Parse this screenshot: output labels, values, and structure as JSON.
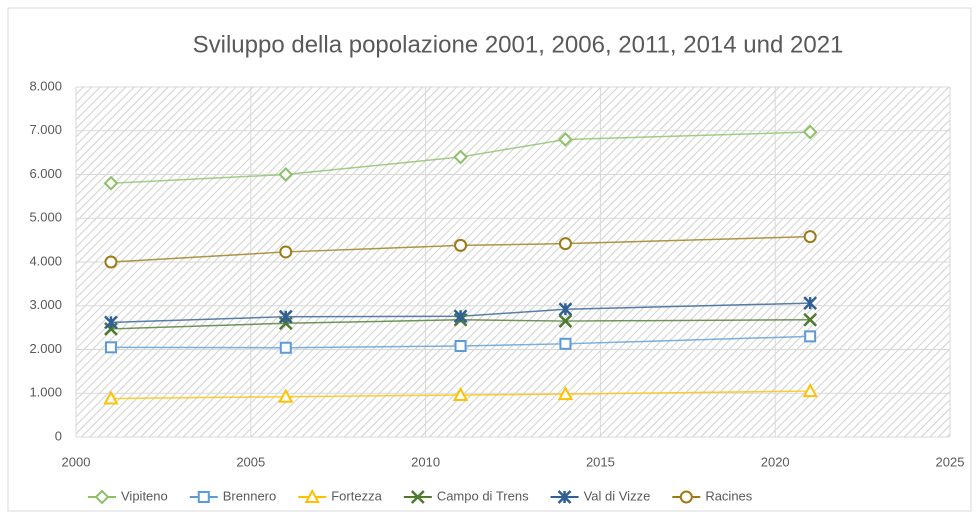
{
  "chart_data": {
    "type": "line",
    "title": "Sviluppo della popolazione 2001, 2006, 2011, 2014 und 2021",
    "x": [
      2001,
      2006,
      2011,
      2014,
      2021
    ],
    "xlim": [
      2000,
      2025
    ],
    "xticks": [
      2000,
      2005,
      2010,
      2015,
      2020,
      2025
    ],
    "ylim": [
      0,
      8000
    ],
    "yticks": [
      0,
      {
        "value": 1000,
        "label": "1.000"
      },
      {
        "value": 2000,
        "label": "2.000"
      },
      {
        "value": 3000,
        "label": "3.000"
      },
      {
        "value": 4000,
        "label": "4.000"
      },
      {
        "value": 5000,
        "label": "5.000"
      },
      {
        "value": 6000,
        "label": "6.000"
      },
      {
        "value": 7000,
        "label": "7.000"
      },
      {
        "value": 8000,
        "label": "8.000"
      }
    ],
    "grid": true,
    "legend": "bottom",
    "series": [
      {
        "name": "Vipiteno",
        "color": "#8cc168",
        "marker": "diamond",
        "values": [
          5800,
          6000,
          6400,
          6800,
          6970
        ]
      },
      {
        "name": "Brennero",
        "color": "#5b9bd5",
        "marker": "square",
        "values": [
          2050,
          2040,
          2080,
          2130,
          2300
        ]
      },
      {
        "name": "Fortezza",
        "color": "#ffc000",
        "marker": "triangle",
        "values": [
          880,
          920,
          960,
          980,
          1050
        ]
      },
      {
        "name": "Campo di Trens",
        "color": "#4e7a2e",
        "marker": "x",
        "values": [
          2470,
          2600,
          2680,
          2650,
          2680
        ]
      },
      {
        "name": "Val di Vizze",
        "color": "#2f5f93",
        "marker": "star",
        "values": [
          2620,
          2750,
          2760,
          2920,
          3060
        ]
      },
      {
        "name": "Racines",
        "color": "#9c7a16",
        "marker": "circle",
        "values": [
          4000,
          4230,
          4380,
          4420,
          4580
        ]
      }
    ]
  }
}
